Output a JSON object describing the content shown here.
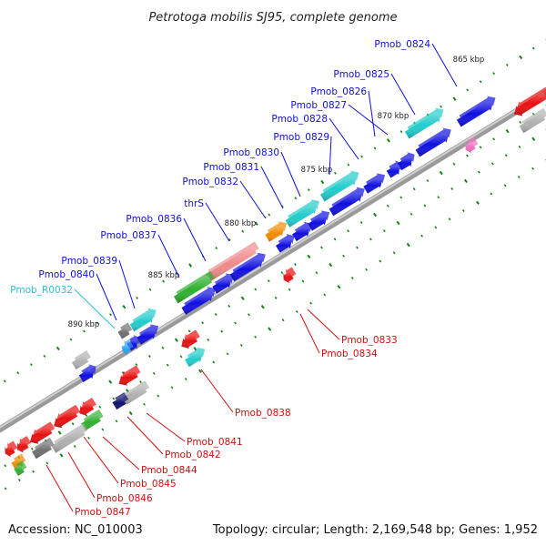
{
  "title": "Petrotoga mobilis SJ95, complete genome",
  "footer": {
    "accession": "Accession: NC_010003",
    "topology": "Topology: circular; Length: 2,169,548 bp; Genes: 1,952"
  },
  "colors": {
    "blue": "#1010e0",
    "cyan": "#22cccc",
    "red": "#e81010",
    "green": "#30b030",
    "gray": "#b0b0b0",
    "darkgray": "#707070",
    "orange": "#f08c00",
    "navy": "#101070",
    "pink": "#f08a8a",
    "magenta": "#f070c0",
    "lightblue": "#30a0f0",
    "label_blue": "#1010d0",
    "label_red": "#d01010",
    "label_cyan": "#30c0d0"
  },
  "scale_labels": [
    {
      "text": "865 kbp",
      "kbp": 865
    },
    {
      "text": "870 kbp",
      "kbp": 870
    },
    {
      "text": "875 kbp",
      "kbp": 875
    },
    {
      "text": "880 kbp",
      "kbp": 880
    },
    {
      "text": "885 kbp",
      "kbp": 885
    },
    {
      "text": "890 kbp",
      "kbp": 890
    }
  ],
  "genes": [
    {
      "label": "Pmob_0824",
      "color": "blue",
      "side": "top"
    },
    {
      "label": "Pmob_0825",
      "color": "cyan",
      "side": "top"
    },
    {
      "label": "Pmob_0826",
      "color": "blue",
      "side": "top"
    },
    {
      "label": "Pmob_0827",
      "color": "blue",
      "side": "top"
    },
    {
      "label": "Pmob_0828",
      "color": "blue",
      "side": "top"
    },
    {
      "label": "Pmob_0829",
      "color": "blue",
      "side": "top"
    },
    {
      "label": "Pmob_0830",
      "color": "cyan",
      "side": "top"
    },
    {
      "label": "Pmob_0831",
      "color": "blue",
      "side": "top"
    },
    {
      "label": "Pmob_0832",
      "color": "cyan",
      "side": "top"
    },
    {
      "label": "thrS",
      "color": "orange",
      "side": "top"
    },
    {
      "label": "Pmob_0836",
      "color": "blue",
      "side": "top"
    },
    {
      "label": "Pmob_0837",
      "color": "pink",
      "side": "top"
    },
    {
      "label": "Pmob_0839",
      "color": "cyan",
      "side": "top"
    },
    {
      "label": "Pmob_0840",
      "color": "darkgray",
      "side": "top"
    },
    {
      "label": "Pmob_R0032",
      "color": "lightblue",
      "side": "top"
    },
    {
      "label": "Pmob_0833",
      "color": "red",
      "side": "bottom"
    },
    {
      "label": "Pmob_0834",
      "color": "red",
      "side": "bottom"
    },
    {
      "label": "Pmob_0838",
      "color": "cyan",
      "side": "bottom"
    },
    {
      "label": "Pmob_0841",
      "color": "gray",
      "side": "bottom"
    },
    {
      "label": "Pmob_0842",
      "color": "navy",
      "side": "bottom"
    },
    {
      "label": "Pmob_0844",
      "color": "red",
      "side": "bottom"
    },
    {
      "label": "Pmob_0845",
      "color": "green",
      "side": "bottom"
    },
    {
      "label": "Pmob_0846",
      "color": "gray",
      "side": "bottom"
    },
    {
      "label": "Pmob_0847",
      "color": "red",
      "side": "bottom"
    }
  ]
}
